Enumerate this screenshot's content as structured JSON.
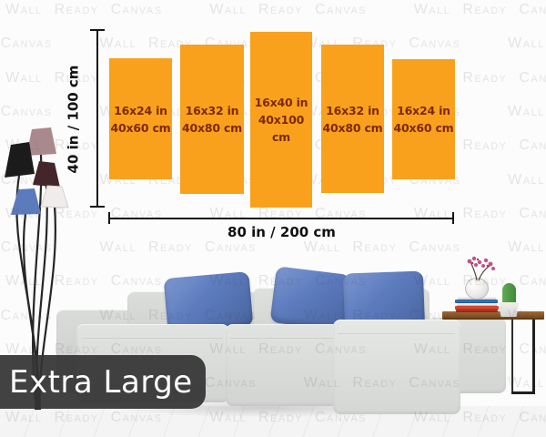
{
  "product_label": {
    "text": "Extra Large"
  },
  "watermark": {
    "text": "Wall Ready Canvas"
  },
  "size_diagram": {
    "panels": [
      {
        "inches": "16x24 in",
        "cm": "40x60 cm"
      },
      {
        "inches": "16x32 in",
        "cm": "40x80 cm"
      },
      {
        "inches": "16x40 in",
        "cm": "40x100 cm"
      },
      {
        "inches": "16x32 in",
        "cm": "40x80 cm"
      },
      {
        "inches": "16x24 in",
        "cm": "40x60 cm"
      }
    ],
    "total_height_label": "40 in / 100 cm",
    "total_width_label": "80 in / 200 cm",
    "panel_color": "#F9A11C",
    "panel_text_color": "#7B2A00"
  },
  "scene": {
    "colors": {
      "wall_white": "#FCFCFC",
      "floor_gray": "#F4F4F4",
      "sofa_gray": "#D9DBD9",
      "pillow_blue": "#5C7BBD",
      "table_wood": "#8A5A2B",
      "cactus_green": "#4E9B45",
      "flower_pink": "#C0538A",
      "badge_dark": "#343434",
      "lamp_shades": [
        "#1B1B1B",
        "#A9898B",
        "#44252A",
        "#EFECEB",
        "#5C7BBD"
      ]
    }
  }
}
